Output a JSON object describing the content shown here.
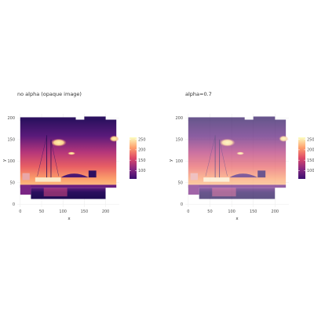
{
  "chart_data": [
    {
      "type": "heatmap",
      "title": "no alpha (opaque image)",
      "xlabel": "x",
      "ylabel": "y",
      "xlim": [
        -7,
        232
      ],
      "ylim": [
        -7,
        210
      ],
      "x_ticks": [
        "0",
        "50",
        "100",
        "150",
        "200"
      ],
      "y_ticks": [
        "0",
        "50",
        "100",
        "150",
        "200"
      ],
      "image_extent": {
        "x": [
          0,
          225
        ],
        "y": [
          0,
          200
        ]
      },
      "alpha": 1,
      "colorbar": {
        "label": "",
        "ticks": [
          "100",
          "150",
          "200",
          "250"
        ],
        "range": [
          60,
          260
        ],
        "colormap": "magma"
      },
      "grid": true,
      "legend_position": "right"
    },
    {
      "type": "heatmap",
      "title": "alpha=0.7",
      "xlabel": "x",
      "ylabel": "y",
      "xlim": [
        -7,
        232
      ],
      "ylim": [
        -7,
        210
      ],
      "x_ticks": [
        "0",
        "50",
        "100",
        "150",
        "200"
      ],
      "y_ticks": [
        "0",
        "50",
        "100",
        "150",
        "200"
      ],
      "image_extent": {
        "x": [
          0,
          225
        ],
        "y": [
          0,
          200
        ]
      },
      "alpha": 0.7,
      "colorbar": {
        "label": "",
        "ticks": [
          "100",
          "150",
          "200",
          "250"
        ],
        "range": [
          60,
          260
        ],
        "colormap": "magma"
      },
      "grid": true,
      "legend_position": "right"
    }
  ]
}
